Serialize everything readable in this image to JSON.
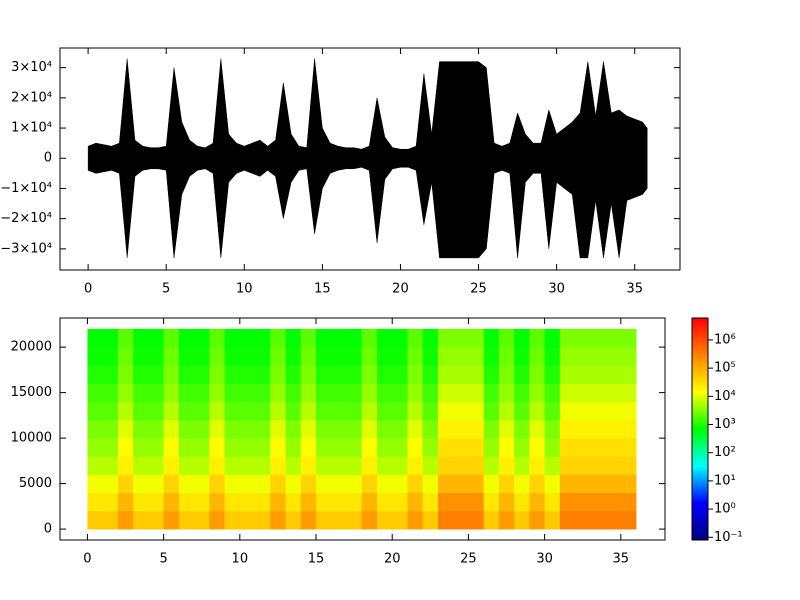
{
  "chart_data": [
    {
      "type": "area",
      "color": "#000000",
      "x": [
        0,
        0.5,
        1,
        1.5,
        2,
        2.5,
        3,
        3.5,
        4,
        4.5,
        5,
        5.5,
        6,
        6.5,
        7,
        7.5,
        8,
        8.5,
        9,
        9.5,
        10,
        10.5,
        11,
        11.5,
        12,
        12.5,
        13,
        13.5,
        14,
        14.5,
        15,
        15.5,
        16,
        16.5,
        17,
        17.5,
        18,
        18.5,
        19,
        19.5,
        20,
        20.5,
        21,
        21.5,
        22,
        22.5,
        23,
        23.5,
        24,
        24.5,
        25,
        25.5,
        26,
        26.5,
        27,
        27.5,
        28,
        28.5,
        29,
        29.5,
        30,
        30.5,
        31,
        31.5,
        32,
        32.5,
        33,
        33.5,
        34,
        34.5,
        35,
        35.5,
        35.8
      ],
      "upper": [
        4000,
        5000,
        4500,
        4000,
        5000,
        33000,
        6000,
        4000,
        3500,
        3500,
        4000,
        30000,
        12000,
        6000,
        4000,
        3500,
        5000,
        33000,
        8000,
        5000,
        4000,
        5000,
        6000,
        4000,
        6000,
        25000,
        8000,
        4000,
        3500,
        33000,
        10000,
        5000,
        4000,
        3500,
        3500,
        3000,
        4000,
        20000,
        7000,
        3500,
        3000,
        3000,
        4000,
        28000,
        8000,
        32000,
        32000,
        32000,
        32000,
        32000,
        32000,
        30000,
        5000,
        4000,
        5000,
        15000,
        8000,
        5000,
        5000,
        16000,
        8000,
        10000,
        12000,
        15000,
        32000,
        14000,
        32000,
        15000,
        16000,
        14000,
        13000,
        12000,
        10000
      ],
      "lower": [
        -4000,
        -5000,
        -4500,
        -4000,
        -5000,
        -33000,
        -6000,
        -4000,
        -3500,
        -3500,
        -4000,
        -33000,
        -12000,
        -6000,
        -4000,
        -3500,
        -5000,
        -33000,
        -8000,
        -5000,
        -4000,
        -5000,
        -6000,
        -4000,
        -6000,
        -20000,
        -8000,
        -4000,
        -3500,
        -25000,
        -10000,
        -5000,
        -4000,
        -3500,
        -3500,
        -3000,
        -4000,
        -28000,
        -7000,
        -3500,
        -3000,
        -3000,
        -4000,
        -22000,
        -8000,
        -33000,
        -33000,
        -33000,
        -33000,
        -33000,
        -33000,
        -30000,
        -5000,
        -4000,
        -5000,
        -33000,
        -8000,
        -5000,
        -5000,
        -30000,
        -8000,
        -10000,
        -12000,
        -33000,
        -33000,
        -14000,
        -33000,
        -15000,
        -33000,
        -14000,
        -13000,
        -12000,
        -10000
      ],
      "xlim": [
        -1.8,
        37.9
      ],
      "xticks": [
        0,
        5,
        10,
        15,
        20,
        25,
        30,
        35
      ],
      "ylim": [
        -37000,
        36500
      ],
      "yticks": [
        {
          "value": 30000,
          "label": "3×10⁴"
        },
        {
          "value": 20000,
          "label": "2×10⁴"
        },
        {
          "value": 10000,
          "label": "1×10⁴"
        },
        0,
        {
          "value": -10000,
          "label": "−1×10⁴"
        },
        {
          "value": -20000,
          "label": "−2×10⁴"
        },
        {
          "value": -30000,
          "label": "−3×10⁴"
        }
      ]
    },
    {
      "type": "heatmap",
      "x": [
        0,
        1,
        2,
        3,
        4,
        5,
        6,
        7,
        8,
        9,
        10,
        11,
        12,
        13,
        14,
        15,
        16,
        17,
        18,
        19,
        20,
        21,
        22,
        23,
        24,
        25,
        26,
        27,
        28,
        29,
        30,
        31,
        32,
        33,
        34,
        35,
        36
      ],
      "y": [
        0,
        2000,
        4000,
        6000,
        8000,
        10000,
        12000,
        14000,
        16000,
        18000,
        20000,
        22000
      ],
      "z": [
        [
          50000,
          50000,
          150000,
          50000,
          50000,
          150000,
          50000,
          50000,
          150000,
          50000,
          50000,
          50000,
          150000,
          50000,
          150000,
          50000,
          50000,
          50000,
          150000,
          50000,
          50000,
          150000,
          50000,
          300000,
          300000,
          300000,
          50000,
          150000,
          50000,
          150000,
          50000,
          300000,
          300000,
          300000,
          300000,
          300000
        ],
        [
          25000,
          25000,
          80000,
          25000,
          25000,
          80000,
          25000,
          25000,
          80000,
          25000,
          25000,
          25000,
          80000,
          25000,
          80000,
          25000,
          25000,
          25000,
          80000,
          25000,
          25000,
          80000,
          25000,
          200000,
          200000,
          200000,
          25000,
          80000,
          25000,
          80000,
          25000,
          200000,
          200000,
          200000,
          200000,
          200000
        ],
        [
          12000,
          12000,
          40000,
          12000,
          12000,
          40000,
          12000,
          12000,
          40000,
          12000,
          12000,
          12000,
          40000,
          12000,
          40000,
          12000,
          12000,
          12000,
          40000,
          12000,
          12000,
          40000,
          12000,
          80000,
          80000,
          80000,
          12000,
          40000,
          12000,
          40000,
          12000,
          80000,
          80000,
          80000,
          80000,
          80000
        ],
        [
          6000,
          6000,
          20000,
          6000,
          6000,
          20000,
          6000,
          6000,
          20000,
          6000,
          6000,
          6000,
          20000,
          6000,
          20000,
          6000,
          6000,
          6000,
          20000,
          6000,
          6000,
          20000,
          6000,
          40000,
          40000,
          40000,
          6000,
          20000,
          6000,
          20000,
          6000,
          40000,
          40000,
          40000,
          40000,
          40000
        ],
        [
          4000,
          4000,
          15000,
          4000,
          4000,
          15000,
          4000,
          4000,
          15000,
          4000,
          4000,
          4000,
          15000,
          4000,
          15000,
          4000,
          4000,
          4000,
          15000,
          4000,
          4000,
          15000,
          4000,
          30000,
          30000,
          30000,
          4000,
          15000,
          4000,
          15000,
          4000,
          30000,
          30000,
          30000,
          30000,
          30000
        ],
        [
          3000,
          3000,
          10000,
          3000,
          3000,
          10000,
          3000,
          3000,
          10000,
          3000,
          3000,
          3000,
          10000,
          3000,
          10000,
          3000,
          3000,
          3000,
          10000,
          3000,
          3000,
          10000,
          3000,
          20000,
          20000,
          20000,
          3000,
          10000,
          3000,
          10000,
          3000,
          20000,
          20000,
          20000,
          20000,
          20000
        ],
        [
          2000,
          2000,
          6000,
          2000,
          2000,
          6000,
          2000,
          2000,
          6000,
          2000,
          2000,
          2000,
          6000,
          2000,
          6000,
          2000,
          2000,
          2000,
          6000,
          2000,
          2000,
          6000,
          2000,
          12000,
          12000,
          12000,
          2000,
          6000,
          2000,
          6000,
          2000,
          12000,
          12000,
          12000,
          12000,
          12000
        ],
        [
          1500,
          1500,
          4000,
          1500,
          1500,
          4000,
          1500,
          1500,
          4000,
          1500,
          1500,
          1500,
          4000,
          1500,
          4000,
          1500,
          1500,
          1500,
          4000,
          1500,
          1500,
          4000,
          1500,
          8000,
          8000,
          8000,
          1500,
          4000,
          1500,
          4000,
          1500,
          8000,
          8000,
          8000,
          8000,
          8000
        ],
        [
          1000,
          1000,
          3000,
          1000,
          1000,
          3000,
          1000,
          1000,
          3000,
          1000,
          1000,
          1000,
          3000,
          1000,
          3000,
          1000,
          1000,
          1000,
          3000,
          1000,
          1000,
          3000,
          1000,
          5000,
          5000,
          5000,
          1000,
          3000,
          1000,
          3000,
          1000,
          5000,
          5000,
          5000,
          5000,
          5000
        ],
        [
          800,
          800,
          2500,
          800,
          800,
          2500,
          800,
          800,
          2500,
          800,
          800,
          800,
          2500,
          800,
          2500,
          800,
          800,
          800,
          2500,
          800,
          800,
          2500,
          800,
          4000,
          4000,
          4000,
          800,
          2500,
          800,
          2500,
          800,
          4000,
          4000,
          4000,
          4000,
          4000
        ],
        [
          700,
          700,
          2000,
          700,
          700,
          2000,
          700,
          700,
          2000,
          700,
          700,
          700,
          2000,
          700,
          2000,
          700,
          700,
          700,
          2000,
          700,
          700,
          2000,
          700,
          3000,
          3000,
          3000,
          700,
          2000,
          700,
          2000,
          700,
          3000,
          3000,
          3000,
          3000,
          3000
        ]
      ],
      "colormap": [
        "#000080",
        "#0000ff",
        "#00ffff",
        "#00ff00",
        "#ffff00",
        "#ff8000",
        "#ff0000"
      ],
      "xlim": [
        -1.8,
        37.9
      ],
      "xticks": [
        0,
        5,
        10,
        15,
        20,
        25,
        30,
        35
      ],
      "ylim": [
        -1200,
        23200
      ],
      "yticks": [
        0,
        5000,
        10000,
        15000,
        20000
      ],
      "zlim": [
        0.08,
        6000000
      ],
      "zticks": [
        {
          "value": 0.1,
          "label": "10⁻¹"
        },
        {
          "value": 1,
          "label": "10⁰"
        },
        {
          "value": 10,
          "label": "10¹"
        },
        {
          "value": 100,
          "label": "10²"
        },
        {
          "value": 1000,
          "label": "10³"
        },
        {
          "value": 10000,
          "label": "10⁴"
        },
        {
          "value": 100000,
          "label": "10⁵"
        },
        {
          "value": 1000000,
          "label": "10⁶"
        }
      ]
    }
  ]
}
